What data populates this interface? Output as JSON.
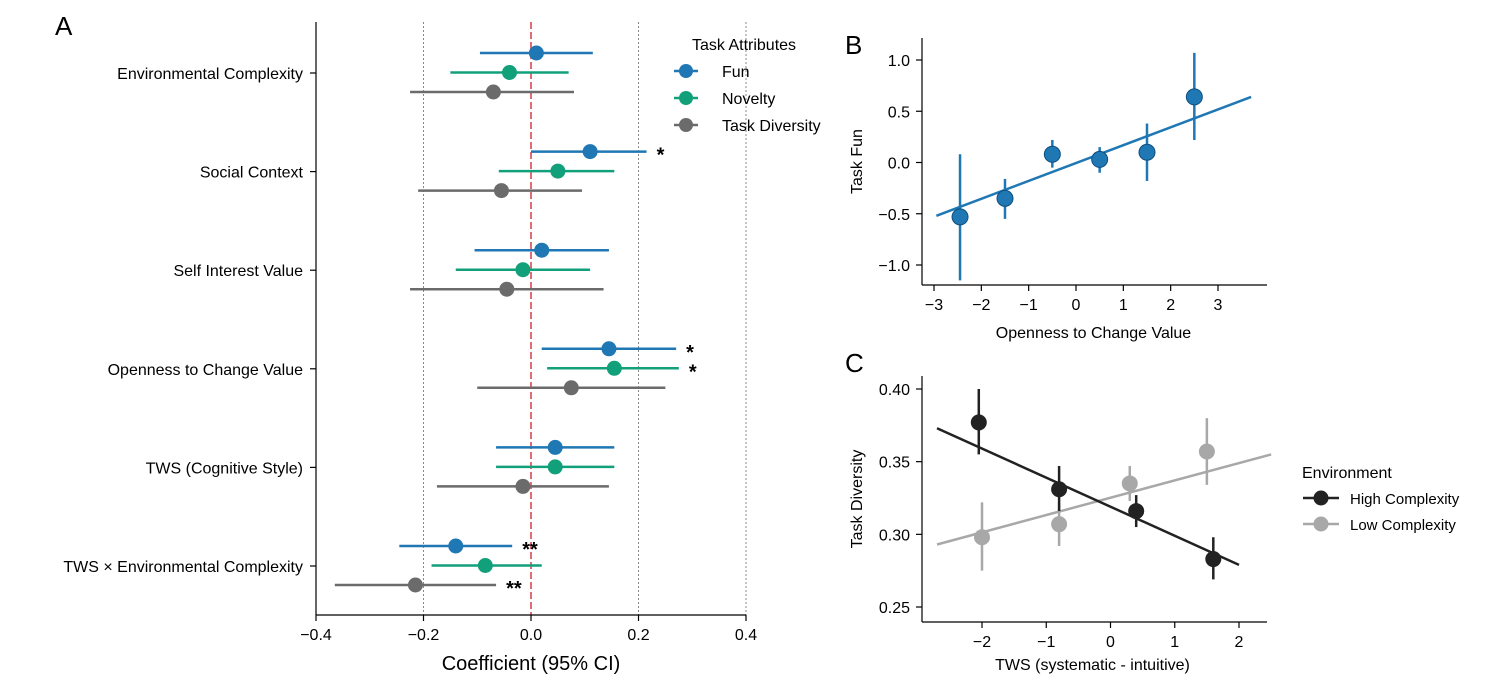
{
  "colors": {
    "fun": "#1f77b4",
    "novelty": "#12a07a",
    "diversity": "#6b6b6b",
    "ref_line": "#e06c75",
    "high": "#222222",
    "low": "#a8a8a8"
  },
  "chart_data": [
    {
      "panel": "A",
      "type": "scatter",
      "subtype": "coefficient-forest-plot",
      "xlabel": "Coefficient (95% CI)",
      "xlim": [
        -0.4,
        0.4
      ],
      "xticks": [
        -0.4,
        -0.2,
        0.0,
        0.2,
        0.4
      ],
      "xtick_labels": [
        "−0.4",
        "−0.2",
        "0.0",
        "0.2",
        "0.4"
      ],
      "vlines": [
        -0.2,
        0.2,
        0.4
      ],
      "ref_line": 0.0,
      "legend_title": "Task Attributes",
      "categories": [
        "Environmental Complexity",
        "Social Context",
        "Self Interest Value",
        "Openness to Change Value",
        "TWS (Cognitive Style)",
        "TWS × Environmental Complexity"
      ],
      "series": [
        {
          "name": "Fun",
          "color_key": "fun",
          "values": [
            0.01,
            0.11,
            0.02,
            0.145,
            0.045,
            -0.14
          ],
          "lo": [
            -0.095,
            0.0,
            -0.105,
            0.02,
            -0.065,
            -0.245
          ],
          "hi": [
            0.115,
            0.215,
            0.145,
            0.27,
            0.155,
            -0.035
          ],
          "sig": [
            "",
            "*",
            "",
            "*",
            "",
            "**"
          ]
        },
        {
          "name": "Novelty",
          "color_key": "novelty",
          "values": [
            -0.04,
            0.05,
            -0.015,
            0.155,
            0.045,
            -0.085
          ],
          "lo": [
            -0.15,
            -0.06,
            -0.14,
            0.03,
            -0.065,
            -0.185
          ],
          "hi": [
            0.07,
            0.155,
            0.11,
            0.275,
            0.155,
            0.02
          ],
          "sig": [
            "",
            "",
            "",
            "*",
            "",
            ""
          ]
        },
        {
          "name": "Task Diversity",
          "color_key": "diversity",
          "values": [
            -0.07,
            -0.055,
            -0.045,
            0.075,
            -0.015,
            -0.215
          ],
          "lo": [
            -0.225,
            -0.21,
            -0.225,
            -0.1,
            -0.175,
            -0.365
          ],
          "hi": [
            0.08,
            0.095,
            0.135,
            0.25,
            0.145,
            -0.065
          ],
          "sig": [
            "",
            "",
            "",
            "",
            "",
            "**"
          ]
        }
      ]
    },
    {
      "panel": "B",
      "type": "scatter",
      "xlabel": "Openness to Change Value",
      "ylabel": "Task Fun",
      "xlim": [
        -3.3,
        4.0
      ],
      "ylim": [
        -1.2,
        1.2
      ],
      "xticks": [
        -3,
        -2,
        -1,
        0,
        1,
        2,
        3
      ],
      "xtick_labels": [
        "−3",
        "−2",
        "−1",
        "0",
        "1",
        "2",
        "3"
      ],
      "yticks": [
        -1.0,
        -0.5,
        0.0,
        0.5,
        1.0
      ],
      "ytick_labels": [
        "−1.0",
        "−0.5",
        "0.0",
        "0.5",
        "1.0"
      ],
      "points": {
        "x": [
          -2.45,
          -1.5,
          -0.5,
          0.5,
          1.5,
          2.5
        ],
        "y": [
          -0.53,
          -0.35,
          0.08,
          0.03,
          0.1,
          0.64
        ],
        "lo": [
          -1.15,
          -0.55,
          -0.05,
          -0.1,
          -0.18,
          0.22
        ],
        "hi": [
          0.08,
          -0.16,
          0.22,
          0.15,
          0.38,
          1.07
        ]
      },
      "fit": {
        "x": [
          -2.95,
          3.7
        ],
        "y": [
          -0.52,
          0.64
        ]
      },
      "color_key": "fun"
    },
    {
      "panel": "C",
      "type": "scatter",
      "xlabel": "TWS (systematic - intuitive)",
      "ylabel": "Task Diversity",
      "xlim": [
        -2.9,
        2.5
      ],
      "ylim": [
        0.24,
        0.41
      ],
      "xticks": [
        -2,
        -1,
        0,
        1,
        2
      ],
      "xtick_labels": [
        "−2",
        "−1",
        "0",
        "1",
        "2"
      ],
      "yticks": [
        0.25,
        0.3,
        0.35,
        0.4
      ],
      "ytick_labels": [
        "0.25",
        "0.30",
        "0.35",
        "0.40"
      ],
      "legend_title": "Environment",
      "series": [
        {
          "name": "High Complexity",
          "color_key": "high",
          "x": [
            -2.05,
            -0.8,
            0.4,
            1.6
          ],
          "y": [
            0.377,
            0.331,
            0.316,
            0.283
          ],
          "lo": [
            0.355,
            0.316,
            0.305,
            0.269
          ],
          "hi": [
            0.4,
            0.347,
            0.327,
            0.298
          ],
          "fit": {
            "x": [
              -2.7,
              2.0
            ],
            "y": [
              0.373,
              0.279
            ]
          }
        },
        {
          "name": "Low Complexity",
          "color_key": "low",
          "x": [
            -2.0,
            -0.8,
            0.3,
            1.5
          ],
          "y": [
            0.298,
            0.307,
            0.335,
            0.357
          ],
          "lo": [
            0.275,
            0.292,
            0.323,
            0.334
          ],
          "hi": [
            0.322,
            0.322,
            0.347,
            0.38
          ],
          "fit": {
            "x": [
              -2.7,
              2.5
            ],
            "y": [
              0.293,
              0.355
            ]
          }
        }
      ]
    }
  ],
  "panel_labels": {
    "a": "A",
    "b": "B",
    "c": "C"
  }
}
